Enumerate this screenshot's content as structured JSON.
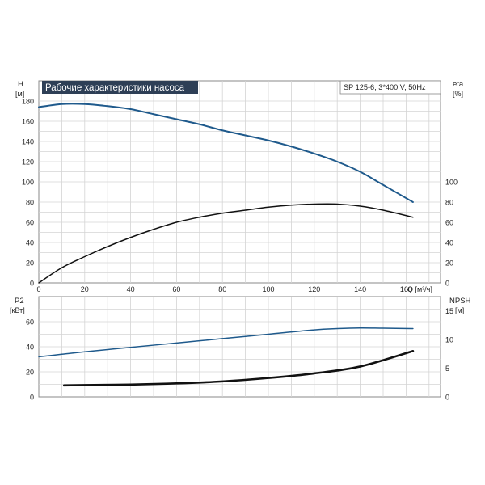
{
  "chart_data": [
    {
      "type": "line",
      "title": "Рабочие характеристики насоса",
      "model_label": "SP 125-6, 3*400 V, 50Hz",
      "y_left_label": "H",
      "y_left_unit": "[м]",
      "y_right_label": "eta",
      "y_right_unit": "[%]",
      "x_label": "Q [м³/ч]",
      "xlim": [
        0,
        175
      ],
      "ylim_left": [
        0,
        200
      ],
      "ylim_right": [
        0,
        200
      ],
      "x_ticks": [
        "0",
        "20",
        "40",
        "60",
        "80",
        "100",
        "120",
        "140",
        "160"
      ],
      "y_left_ticks": [
        "0",
        "20",
        "40",
        "60",
        "80",
        "100",
        "120",
        "140",
        "160",
        "180"
      ],
      "y_right_ticks": [
        "0",
        "20",
        "40",
        "60",
        "80",
        "100"
      ],
      "grid": true,
      "series": [
        {
          "name": "H",
          "color": "#1f5a8c",
          "x": [
            0,
            10,
            20,
            30,
            40,
            50,
            60,
            70,
            80,
            90,
            100,
            110,
            120,
            130,
            140,
            150,
            163
          ],
          "values": [
            174,
            177,
            177,
            175,
            172,
            167,
            162,
            157,
            151,
            146,
            141,
            135,
            128,
            120,
            110,
            97,
            80
          ]
        },
        {
          "name": "eta",
          "color": "#111111",
          "x": [
            0,
            10,
            20,
            30,
            40,
            50,
            60,
            70,
            80,
            90,
            100,
            110,
            120,
            130,
            140,
            150,
            163
          ],
          "values": [
            0,
            15,
            26,
            36,
            45,
            53,
            60,
            65,
            69,
            72,
            75,
            77,
            78,
            78,
            76,
            72,
            65
          ]
        }
      ]
    },
    {
      "type": "line",
      "y_left_label": "P2",
      "y_left_unit": "[кВт]",
      "y_right_label": "NPSH",
      "y_right_unit": "[м]",
      "xlim": [
        0,
        175
      ],
      "ylim_left": [
        0,
        80
      ],
      "ylim_right": [
        0,
        17.5
      ],
      "y_left_ticks": [
        "0",
        "20",
        "40",
        "60"
      ],
      "y_right_ticks": [
        "0",
        "5",
        "10",
        "15"
      ],
      "grid": true,
      "series": [
        {
          "name": "P2",
          "color": "#1f5a8c",
          "x": [
            0,
            10,
            20,
            40,
            60,
            80,
            100,
            120,
            130,
            140,
            150,
            163
          ],
          "values": [
            32,
            34,
            36,
            39.5,
            43,
            46.5,
            50,
            53.5,
            54.5,
            55,
            54.8,
            54.5
          ]
        },
        {
          "name": "NPSH",
          "color": "#111111",
          "x": [
            11,
            20,
            40,
            60,
            80,
            100,
            120,
            140,
            163
          ],
          "values": [
            2,
            2.05,
            2.15,
            2.35,
            2.7,
            3.3,
            4.1,
            5.3,
            8
          ]
        }
      ]
    }
  ]
}
